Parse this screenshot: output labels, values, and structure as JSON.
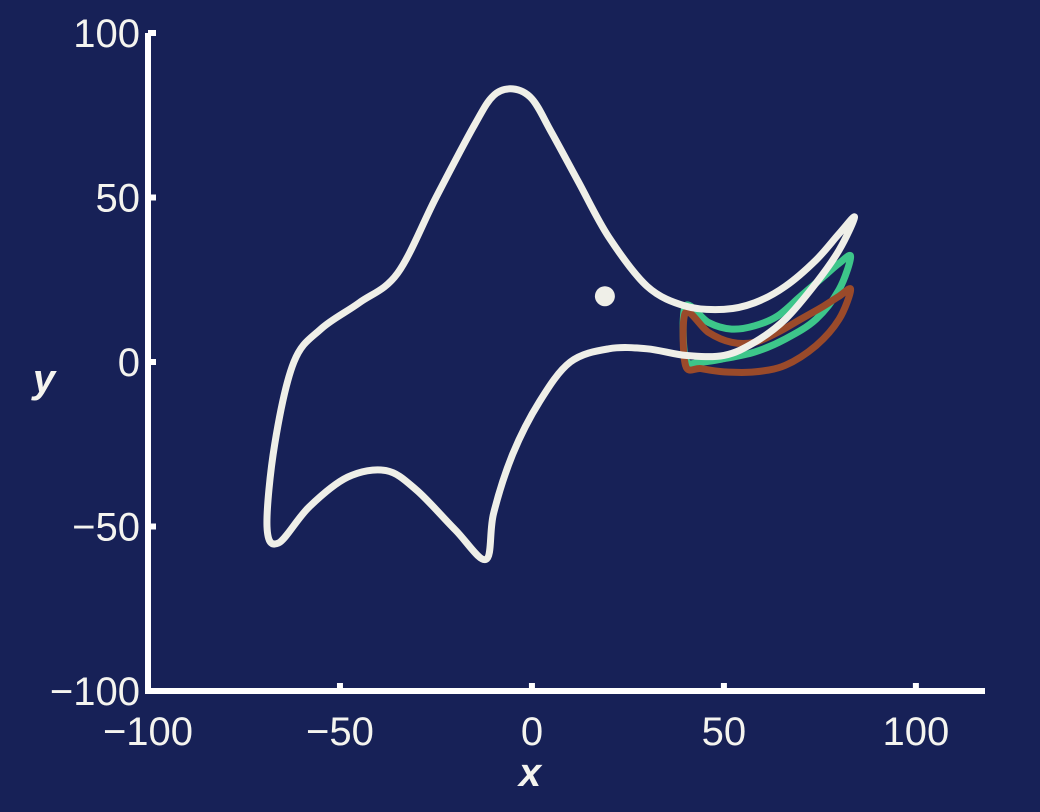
{
  "chart_data": {
    "type": "line",
    "title": "",
    "xlabel": "x",
    "ylabel": "y",
    "xlim": [
      -100,
      118
    ],
    "ylim": [
      -100,
      100
    ],
    "xticks": [
      -100,
      -50,
      0,
      50,
      100
    ],
    "xtick_labels": [
      "−100",
      "−50",
      "0",
      "50",
      "100"
    ],
    "yticks": [
      -100,
      -50,
      0,
      50,
      100
    ],
    "ytick_labels": [
      "−100",
      "−50",
      "0",
      "50",
      "100"
    ],
    "grid": false,
    "colors": {
      "background": "#172157",
      "axes": "#ffffff",
      "text": "#f4f4ef",
      "main_curve": "#efefe8",
      "green_curve": "#3dc68a",
      "brown_curve": "#9a4a2a"
    },
    "series": [
      {
        "x": [
          -5,
          0,
          5,
          12,
          20,
          30,
          40,
          50,
          58,
          66,
          74,
          80,
          84,
          80,
          74,
          66,
          58,
          50,
          40,
          30,
          20,
          10,
          2,
          -5,
          -10,
          -12,
          -20,
          -30,
          -38,
          -48,
          -58,
          -66,
          -69,
          -67,
          -62,
          -55,
          -45,
          -35,
          -25,
          -15,
          -10
        ],
        "y": [
          83,
          80,
          70,
          55,
          38,
          23,
          17,
          16,
          18,
          23,
          31,
          39,
          44,
          34,
          24,
          13,
          6,
          2,
          2,
          4,
          4,
          0,
          -12,
          -28,
          -46,
          -60,
          -51,
          -39,
          -33,
          -35,
          -44,
          -55,
          -50,
          -25,
          0,
          10,
          18,
          27,
          50,
          72,
          81
        ],
        "closed": true,
        "color": "#efefe8"
      },
      {
        "x": [
          40,
          46,
          52,
          58,
          64,
          70,
          76,
          80,
          83,
          80,
          74,
          66,
          58,
          50,
          44,
          40
        ],
        "y": [
          17,
          12,
          10,
          11,
          14,
          20,
          26,
          30,
          32,
          22,
          13,
          7,
          3,
          1,
          0,
          1
        ],
        "closed": true,
        "color": "#3dc68a"
      },
      {
        "x": [
          40,
          46,
          52,
          58,
          64,
          70,
          76,
          80,
          83,
          80,
          74,
          66,
          58,
          50,
          44,
          40
        ],
        "y": [
          15,
          9,
          6,
          6,
          9,
          13,
          17,
          20,
          22,
          13,
          5,
          -1,
          -3,
          -3,
          -2,
          -1
        ],
        "closed": true,
        "color": "#9a4a2a"
      },
      {
        "x": [
          19
        ],
        "y": [
          20
        ],
        "color": "#efefe8"
      }
    ]
  }
}
